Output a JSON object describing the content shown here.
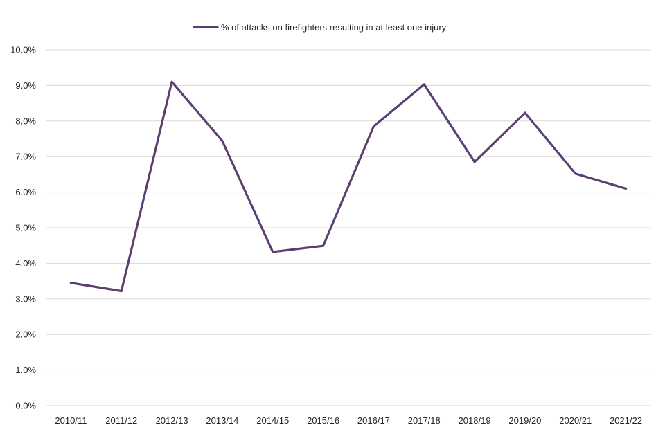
{
  "chart_data": {
    "type": "line",
    "categories": [
      "2010/11",
      "2011/12",
      "2012/13",
      "2013/14",
      "2014/15",
      "2015/16",
      "2016/17",
      "2017/18",
      "2018/19",
      "2019/20",
      "2020/21",
      "2021/22"
    ],
    "series": [
      {
        "name": "% of attacks on firefighters resulting in at least one injury",
        "color": "#5b3f70",
        "values": [
          3.45,
          3.22,
          9.1,
          7.44,
          4.32,
          4.49,
          7.85,
          9.03,
          6.85,
          8.23,
          6.52,
          6.1
        ]
      }
    ],
    "ylim": [
      0,
      10
    ],
    "yticks": [
      "0.0%",
      "1.0%",
      "2.0%",
      "3.0%",
      "4.0%",
      "5.0%",
      "6.0%",
      "7.0%",
      "8.0%",
      "9.0%",
      "10.0%"
    ],
    "grid": true,
    "legend_position": "top-center"
  }
}
